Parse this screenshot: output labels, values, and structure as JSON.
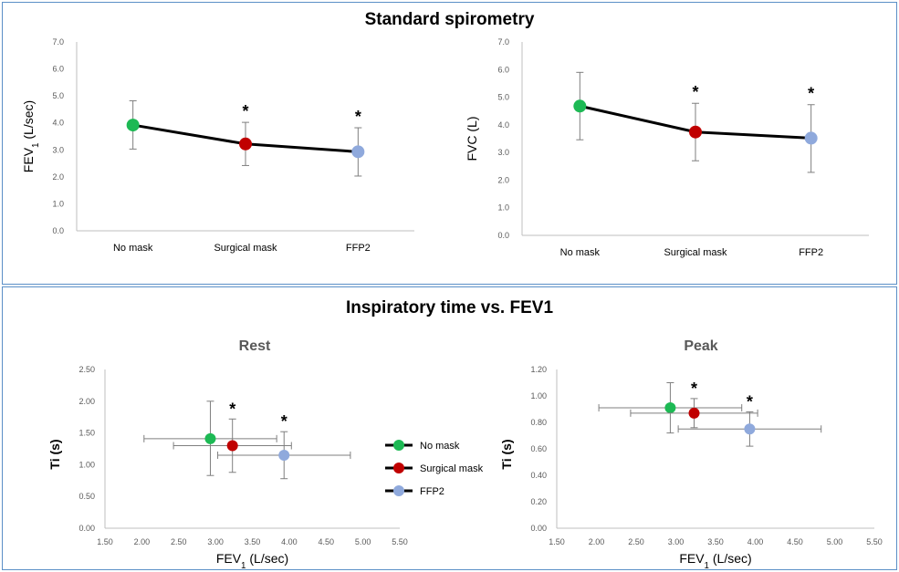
{
  "sections": {
    "top_title": "Standard spirometry",
    "bottom_title": "Inspiratory time vs. FEV1"
  },
  "colors": {
    "no_mask": "#1db954",
    "surgical_mask": "#c00000",
    "ffp2": "#8fa9dc",
    "line": "#000000",
    "axis": "#bfbfbf",
    "border": "#5b8fc7"
  },
  "legend": [
    {
      "label": "No mask",
      "color": "#1db954"
    },
    {
      "label": "Surgical mask",
      "color": "#c00000"
    },
    {
      "label": "FFP2",
      "color": "#8fa9dc"
    }
  ],
  "chart_data": [
    {
      "type": "line",
      "title": "",
      "ylabel": "FEV",
      "ylabel_sub": "1",
      "ylabel_suffix": " (L/sec)",
      "xlabel": "",
      "categories": [
        "No mask",
        "Surgical mask",
        "FFP2"
      ],
      "values": [
        3.92,
        3.22,
        2.93
      ],
      "err_low": [
        3.03,
        2.42,
        2.03
      ],
      "err_high": [
        4.82,
        4.02,
        3.82
      ],
      "significance": [
        "",
        "*",
        "*"
      ],
      "ylim": [
        0,
        7
      ],
      "yticks": [
        "0.0",
        "1.0",
        "2.0",
        "3.0",
        "4.0",
        "5.0",
        "6.0",
        "7.0"
      ],
      "grid": false
    },
    {
      "type": "line",
      "title": "",
      "ylabel": "FVC (L)",
      "ylabel_sub": "",
      "ylabel_suffix": "",
      "xlabel": "",
      "categories": [
        "No mask",
        "Surgical mask",
        "FFP2"
      ],
      "values": [
        4.68,
        3.74,
        3.52
      ],
      "err_low": [
        3.46,
        2.7,
        2.28
      ],
      "err_high": [
        5.9,
        4.78,
        4.73
      ],
      "significance": [
        "",
        "*",
        "*"
      ],
      "ylim": [
        0,
        7
      ],
      "yticks": [
        "0.0",
        "1.0",
        "2.0",
        "3.0",
        "4.0",
        "5.0",
        "6.0",
        "7.0"
      ],
      "grid": false
    },
    {
      "type": "scatter",
      "title": "Rest",
      "xlabel": "FEV",
      "xlabel_sub": "1",
      "xlabel_suffix": " (L/sec)",
      "ylabel": "Ti (s)",
      "xlim": [
        1.5,
        5.5
      ],
      "ylim": [
        0,
        2.5
      ],
      "xticks": [
        "1.50",
        "2.00",
        "2.50",
        "3.00",
        "3.50",
        "4.00",
        "4.50",
        "5.00",
        "5.50"
      ],
      "yticks": [
        "0.00",
        "0.50",
        "1.00",
        "1.50",
        "2.00",
        "2.50"
      ],
      "series": [
        {
          "name": "No mask",
          "x": 2.93,
          "y": 1.41,
          "x_err": [
            2.03,
            3.83
          ],
          "y_err": [
            0.83,
            2.0
          ],
          "sig": ""
        },
        {
          "name": "Surgical mask",
          "x": 3.23,
          "y": 1.3,
          "x_err": [
            2.43,
            4.03
          ],
          "y_err": [
            0.88,
            1.72
          ],
          "sig": "*"
        },
        {
          "name": "FFP2",
          "x": 3.93,
          "y": 1.15,
          "x_err": [
            3.03,
            4.83
          ],
          "y_err": [
            0.78,
            1.52
          ],
          "sig": "*"
        }
      ],
      "grid": false
    },
    {
      "type": "scatter",
      "title": "Peak",
      "xlabel": "FEV",
      "xlabel_sub": "1",
      "xlabel_suffix": " (L/sec)",
      "ylabel": "Ti (s)",
      "xlim": [
        1.5,
        5.5
      ],
      "ylim": [
        0,
        1.2
      ],
      "xticks": [
        "1.50",
        "2.00",
        "2.50",
        "3.00",
        "3.50",
        "4.00",
        "4.50",
        "5.00",
        "5.50"
      ],
      "yticks": [
        "0.00",
        "0.20",
        "0.40",
        "0.60",
        "0.80",
        "1.00",
        "1.20"
      ],
      "series": [
        {
          "name": "No mask",
          "x": 2.93,
          "y": 0.91,
          "x_err": [
            2.03,
            3.83
          ],
          "y_err": [
            0.72,
            1.1
          ],
          "sig": ""
        },
        {
          "name": "Surgical mask",
          "x": 3.23,
          "y": 0.87,
          "x_err": [
            2.43,
            4.03
          ],
          "y_err": [
            0.76,
            0.98
          ],
          "sig": "*"
        },
        {
          "name": "FFP2",
          "x": 3.93,
          "y": 0.75,
          "x_err": [
            3.03,
            4.83
          ],
          "y_err": [
            0.62,
            0.88
          ],
          "sig": "*"
        }
      ],
      "grid": false
    }
  ]
}
